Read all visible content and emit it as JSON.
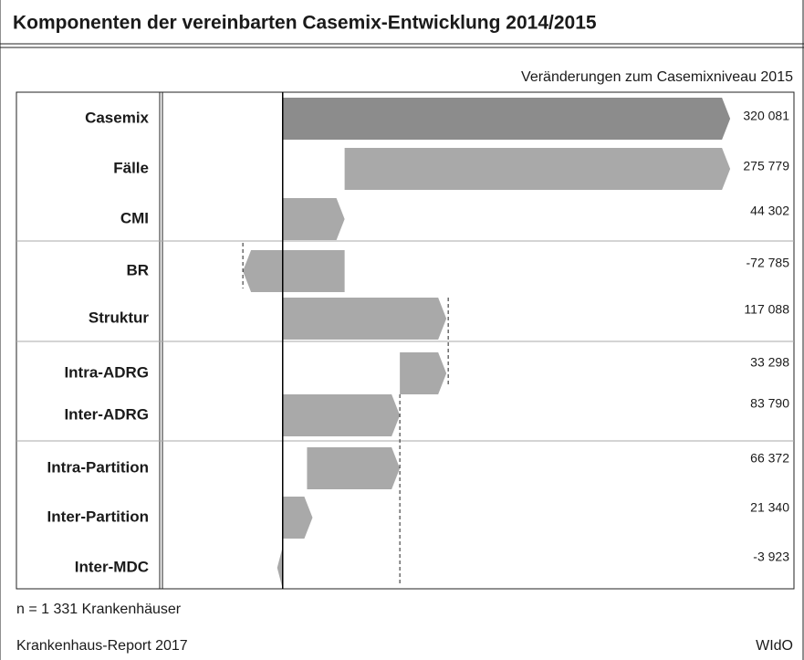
{
  "chart_data": {
    "type": "waterfall",
    "title": "Komponenten der vereinbarten Casemix-Entwicklung 2014/2015",
    "subtitle": "Veränderungen zum Casemixniveau 2015",
    "categories": [
      "Casemix",
      "Fälle",
      "CMI",
      "BR",
      "Struktur",
      "Intra-ADRG",
      "Inter-ADRG",
      "Intra-Partition",
      "Inter-Partition",
      "Inter-MDC"
    ],
    "values": [
      320081,
      275779,
      44302,
      -72785,
      117088,
      33298,
      83790,
      66372,
      21340,
      -3923
    ],
    "value_labels": [
      "320 081",
      "275 779",
      "44 302",
      "-72 785",
      "117 088",
      "33 298",
      "83 790",
      "66 372",
      "21 340",
      "-3 923"
    ],
    "colors": [
      "#8c8c8c",
      "#a9a9a9",
      "#a9a9a9",
      "#a9a9a9",
      "#a9a9a9",
      "#a9a9a9",
      "#a9a9a9",
      "#a9a9a9",
      "#a9a9a9",
      "#a9a9a9"
    ],
    "xlim": [
      -86000,
      320000
    ],
    "note": "n = 1 331 Krankenhäuser",
    "source": "Krankenhaus-Report 2017",
    "publisher": "WIdO"
  }
}
